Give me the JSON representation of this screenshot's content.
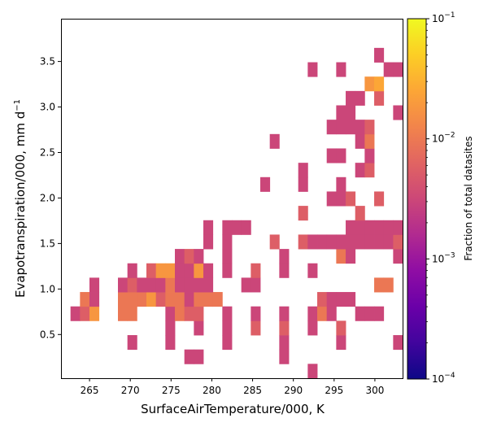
{
  "chart_data": {
    "type": "heatmap",
    "xlabel": "SurfaceAirTemperature/000,  K",
    "ylabel": "Evapotranspiration/000,  mm d",
    "ylabel_sup": "−1",
    "xlim": [
      261.5,
      303.4
    ],
    "ylim": [
      0.02,
      3.97
    ],
    "xticks": [
      265,
      270,
      275,
      280,
      285,
      290,
      295,
      300
    ],
    "yticks": [
      0.5,
      1.0,
      1.5,
      2.0,
      2.5,
      3.0,
      3.5
    ],
    "xtick_labels": [
      "265",
      "270",
      "275",
      "280",
      "285",
      "290",
      "295",
      "300"
    ],
    "ytick_labels": [
      "0.5",
      "1.0",
      "1.5",
      "2.0",
      "2.5",
      "3.0",
      "3.5"
    ],
    "bins": {
      "x0": 261.5,
      "dx": 1.164,
      "y0": 0.02,
      "dy": 0.1578,
      "nx": 36,
      "ny": 25
    },
    "colorbar": {
      "label": "Fraction of total datasites",
      "scale": "log",
      "range": [
        0.0001,
        0.1
      ],
      "colormap": "plasma",
      "tick_values": [
        0.0001,
        0.001,
        0.01,
        0.1
      ],
      "tick_bases": [
        "10",
        "10",
        "10",
        "10"
      ],
      "tick_exps": [
        "−4",
        "−3",
        "−2",
        "−1"
      ]
    },
    "cells": [
      {
        "i": 26,
        "j": 0,
        "v": 0.0031
      },
      {
        "i": 13,
        "j": 1,
        "v": 0.0031
      },
      {
        "i": 14,
        "j": 1,
        "v": 0.0031
      },
      {
        "i": 23,
        "j": 1,
        "v": 0.0031
      },
      {
        "i": 7,
        "j": 2,
        "v": 0.0031
      },
      {
        "i": 11,
        "j": 2,
        "v": 0.0031
      },
      {
        "i": 17,
        "j": 2,
        "v": 0.0031
      },
      {
        "i": 23,
        "j": 2,
        "v": 0.0031
      },
      {
        "i": 29,
        "j": 2,
        "v": 0.0031
      },
      {
        "i": 35,
        "j": 2,
        "v": 0.0031
      },
      {
        "i": 11,
        "j": 3,
        "v": 0.0031
      },
      {
        "i": 14,
        "j": 3,
        "v": 0.0031
      },
      {
        "i": 17,
        "j": 3,
        "v": 0.0031
      },
      {
        "i": 20,
        "j": 3,
        "v": 0.0055
      },
      {
        "i": 23,
        "j": 3,
        "v": 0.0055
      },
      {
        "i": 26,
        "j": 3,
        "v": 0.0031
      },
      {
        "i": 29,
        "j": 3,
        "v": 0.0055
      },
      {
        "i": 1,
        "j": 4,
        "v": 0.0031
      },
      {
        "i": 2,
        "j": 4,
        "v": 0.0055
      },
      {
        "i": 3,
        "j": 4,
        "v": 0.018
      },
      {
        "i": 6,
        "j": 4,
        "v": 0.0095
      },
      {
        "i": 7,
        "j": 4,
        "v": 0.0095
      },
      {
        "i": 11,
        "j": 4,
        "v": 0.0031
      },
      {
        "i": 12,
        "j": 4,
        "v": 0.0095
      },
      {
        "i": 13,
        "j": 4,
        "v": 0.0055
      },
      {
        "i": 14,
        "j": 4,
        "v": 0.0055
      },
      {
        "i": 17,
        "j": 4,
        "v": 0.0031
      },
      {
        "i": 20,
        "j": 4,
        "v": 0.0031
      },
      {
        "i": 23,
        "j": 4,
        "v": 0.0031
      },
      {
        "i": 26,
        "j": 4,
        "v": 0.0031
      },
      {
        "i": 27,
        "j": 4,
        "v": 0.0095
      },
      {
        "i": 28,
        "j": 4,
        "v": 0.0031
      },
      {
        "i": 31,
        "j": 4,
        "v": 0.0031
      },
      {
        "i": 32,
        "j": 4,
        "v": 0.0031
      },
      {
        "i": 33,
        "j": 4,
        "v": 0.0031
      },
      {
        "i": 2,
        "j": 5,
        "v": 0.0095
      },
      {
        "i": 3,
        "j": 5,
        "v": 0.0031
      },
      {
        "i": 6,
        "j": 5,
        "v": 0.0095
      },
      {
        "i": 7,
        "j": 5,
        "v": 0.0095
      },
      {
        "i": 8,
        "j": 5,
        "v": 0.0095
      },
      {
        "i": 9,
        "j": 5,
        "v": 0.018
      },
      {
        "i": 10,
        "j": 5,
        "v": 0.0055
      },
      {
        "i": 11,
        "j": 5,
        "v": 0.0095
      },
      {
        "i": 12,
        "j": 5,
        "v": 0.0095
      },
      {
        "i": 13,
        "j": 5,
        "v": 0.0031
      },
      {
        "i": 14,
        "j": 5,
        "v": 0.0095
      },
      {
        "i": 15,
        "j": 5,
        "v": 0.0095
      },
      {
        "i": 16,
        "j": 5,
        "v": 0.0095
      },
      {
        "i": 27,
        "j": 5,
        "v": 0.0055
      },
      {
        "i": 28,
        "j": 5,
        "v": 0.0031
      },
      {
        "i": 29,
        "j": 5,
        "v": 0.0031
      },
      {
        "i": 30,
        "j": 5,
        "v": 0.0031
      },
      {
        "i": 3,
        "j": 6,
        "v": 0.0031
      },
      {
        "i": 6,
        "j": 6,
        "v": 0.0031
      },
      {
        "i": 7,
        "j": 6,
        "v": 0.0055
      },
      {
        "i": 8,
        "j": 6,
        "v": 0.0031
      },
      {
        "i": 9,
        "j": 6,
        "v": 0.0031
      },
      {
        "i": 10,
        "j": 6,
        "v": 0.0031
      },
      {
        "i": 11,
        "j": 6,
        "v": 0.0095
      },
      {
        "i": 12,
        "j": 6,
        "v": 0.0031
      },
      {
        "i": 13,
        "j": 6,
        "v": 0.0031
      },
      {
        "i": 14,
        "j": 6,
        "v": 0.0031
      },
      {
        "i": 15,
        "j": 6,
        "v": 0.0031
      },
      {
        "i": 19,
        "j": 6,
        "v": 0.0031
      },
      {
        "i": 20,
        "j": 6,
        "v": 0.0031
      },
      {
        "i": 33,
        "j": 6,
        "v": 0.0095
      },
      {
        "i": 34,
        "j": 6,
        "v": 0.0095
      },
      {
        "i": 7,
        "j": 7,
        "v": 0.0031
      },
      {
        "i": 9,
        "j": 7,
        "v": 0.0055
      },
      {
        "i": 10,
        "j": 7,
        "v": 0.018
      },
      {
        "i": 11,
        "j": 7,
        "v": 0.018
      },
      {
        "i": 12,
        "j": 7,
        "v": 0.0031
      },
      {
        "i": 13,
        "j": 7,
        "v": 0.0031
      },
      {
        "i": 14,
        "j": 7,
        "v": 0.018
      },
      {
        "i": 15,
        "j": 7,
        "v": 0.0031
      },
      {
        "i": 17,
        "j": 7,
        "v": 0.0031
      },
      {
        "i": 20,
        "j": 7,
        "v": 0.0055
      },
      {
        "i": 23,
        "j": 7,
        "v": 0.0031
      },
      {
        "i": 26,
        "j": 7,
        "v": 0.0031
      },
      {
        "i": 12,
        "j": 8,
        "v": 0.0031
      },
      {
        "i": 13,
        "j": 8,
        "v": 0.0055
      },
      {
        "i": 14,
        "j": 8,
        "v": 0.0031
      },
      {
        "i": 17,
        "j": 8,
        "v": 0.0031
      },
      {
        "i": 23,
        "j": 8,
        "v": 0.0031
      },
      {
        "i": 29,
        "j": 8,
        "v": 0.0095
      },
      {
        "i": 30,
        "j": 8,
        "v": 0.0031
      },
      {
        "i": 35,
        "j": 8,
        "v": 0.0031
      },
      {
        "i": 15,
        "j": 9,
        "v": 0.0031
      },
      {
        "i": 17,
        "j": 9,
        "v": 0.0031
      },
      {
        "i": 22,
        "j": 9,
        "v": 0.0055
      },
      {
        "i": 25,
        "j": 9,
        "v": 0.0055
      },
      {
        "i": 26,
        "j": 9,
        "v": 0.0031
      },
      {
        "i": 27,
        "j": 9,
        "v": 0.0031
      },
      {
        "i": 28,
        "j": 9,
        "v": 0.0031
      },
      {
        "i": 29,
        "j": 9,
        "v": 0.0031
      },
      {
        "i": 30,
        "j": 9,
        "v": 0.0031
      },
      {
        "i": 31,
        "j": 9,
        "v": 0.0031
      },
      {
        "i": 32,
        "j": 9,
        "v": 0.0031
      },
      {
        "i": 33,
        "j": 9,
        "v": 0.0031
      },
      {
        "i": 34,
        "j": 9,
        "v": 0.0031
      },
      {
        "i": 35,
        "j": 9,
        "v": 0.0055
      },
      {
        "i": 15,
        "j": 10,
        "v": 0.0031
      },
      {
        "i": 17,
        "j": 10,
        "v": 0.0031
      },
      {
        "i": 18,
        "j": 10,
        "v": 0.0031
      },
      {
        "i": 19,
        "j": 10,
        "v": 0.0031
      },
      {
        "i": 30,
        "j": 10,
        "v": 0.0031
      },
      {
        "i": 31,
        "j": 10,
        "v": 0.0031
      },
      {
        "i": 32,
        "j": 10,
        "v": 0.0031
      },
      {
        "i": 33,
        "j": 10,
        "v": 0.0031
      },
      {
        "i": 34,
        "j": 10,
        "v": 0.0031
      },
      {
        "i": 35,
        "j": 10,
        "v": 0.0031
      },
      {
        "i": 25,
        "j": 11,
        "v": 0.0055
      },
      {
        "i": 31,
        "j": 11,
        "v": 0.0055
      },
      {
        "i": 28,
        "j": 12,
        "v": 0.0031
      },
      {
        "i": 29,
        "j": 12,
        "v": 0.0031
      },
      {
        "i": 30,
        "j": 12,
        "v": 0.0055
      },
      {
        "i": 33,
        "j": 12,
        "v": 0.0055
      },
      {
        "i": 21,
        "j": 13,
        "v": 0.0031
      },
      {
        "i": 25,
        "j": 13,
        "v": 0.0031
      },
      {
        "i": 29,
        "j": 13,
        "v": 0.0031
      },
      {
        "i": 25,
        "j": 14,
        "v": 0.0031
      },
      {
        "i": 31,
        "j": 14,
        "v": 0.0031
      },
      {
        "i": 32,
        "j": 14,
        "v": 0.0055
      },
      {
        "i": 28,
        "j": 15,
        "v": 0.0031
      },
      {
        "i": 29,
        "j": 15,
        "v": 0.0031
      },
      {
        "i": 32,
        "j": 15,
        "v": 0.0031
      },
      {
        "i": 22,
        "j": 16,
        "v": 0.0031
      },
      {
        "i": 31,
        "j": 16,
        "v": 0.0031
      },
      {
        "i": 32,
        "j": 16,
        "v": 0.0095
      },
      {
        "i": 28,
        "j": 17,
        "v": 0.0031
      },
      {
        "i": 29,
        "j": 17,
        "v": 0.0031
      },
      {
        "i": 30,
        "j": 17,
        "v": 0.0031
      },
      {
        "i": 31,
        "j": 17,
        "v": 0.0031
      },
      {
        "i": 32,
        "j": 17,
        "v": 0.0055
      },
      {
        "i": 29,
        "j": 18,
        "v": 0.0031
      },
      {
        "i": 30,
        "j": 18,
        "v": 0.0031
      },
      {
        "i": 35,
        "j": 18,
        "v": 0.0031
      },
      {
        "i": 30,
        "j": 19,
        "v": 0.0031
      },
      {
        "i": 31,
        "j": 19,
        "v": 0.0031
      },
      {
        "i": 33,
        "j": 19,
        "v": 0.0055
      },
      {
        "i": 32,
        "j": 20,
        "v": 0.018
      },
      {
        "i": 33,
        "j": 20,
        "v": 0.025
      },
      {
        "i": 26,
        "j": 21,
        "v": 0.0031
      },
      {
        "i": 29,
        "j": 21,
        "v": 0.0031
      },
      {
        "i": 34,
        "j": 21,
        "v": 0.0031
      },
      {
        "i": 35,
        "j": 21,
        "v": 0.0031
      },
      {
        "i": 33,
        "j": 22,
        "v": 0.0031
      }
    ]
  }
}
